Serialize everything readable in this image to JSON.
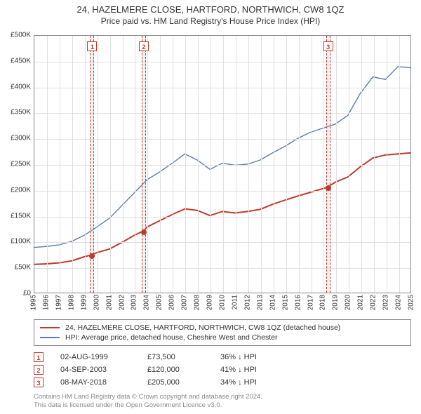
{
  "title_line1": "24, HAZELMERE CLOSE, HARTFORD, NORTHWICH, CW8 1QZ",
  "title_line2": "Price paid vs. HM Land Registry's House Price Index (HPI)",
  "chart": {
    "type": "line",
    "x_years_start": 1995,
    "x_years_end": 2025,
    "ylim": [
      0,
      500000
    ],
    "ytick_step": 50000,
    "ytick_labels": [
      "£0",
      "£50K",
      "£100K",
      "£150K",
      "£200K",
      "£250K",
      "£300K",
      "£350K",
      "£400K",
      "£450K",
      "£500K"
    ],
    "grid_color": "#e0e0e0",
    "border_color": "#888888",
    "background_color": "#ffffff",
    "series": [
      {
        "name": "price_paid",
        "color": "#c0392b",
        "width": 2,
        "points": [
          [
            1995,
            55000
          ],
          [
            1996,
            56000
          ],
          [
            1997,
            58000
          ],
          [
            1998,
            62000
          ],
          [
            1999,
            70000
          ],
          [
            1999.6,
            73500
          ],
          [
            2000,
            78000
          ],
          [
            2001,
            85000
          ],
          [
            2002,
            98000
          ],
          [
            2003,
            112000
          ],
          [
            2003.7,
            120000
          ],
          [
            2004,
            128000
          ],
          [
            2005,
            140000
          ],
          [
            2006,
            152000
          ],
          [
            2007,
            163000
          ],
          [
            2008,
            160000
          ],
          [
            2009,
            150000
          ],
          [
            2010,
            158000
          ],
          [
            2011,
            155000
          ],
          [
            2012,
            158000
          ],
          [
            2013,
            162000
          ],
          [
            2014,
            172000
          ],
          [
            2015,
            180000
          ],
          [
            2016,
            188000
          ],
          [
            2017,
            195000
          ],
          [
            2018.35,
            205000
          ],
          [
            2019,
            215000
          ],
          [
            2020,
            225000
          ],
          [
            2021,
            245000
          ],
          [
            2022,
            262000
          ],
          [
            2023,
            268000
          ],
          [
            2024,
            270000
          ],
          [
            2025,
            272000
          ]
        ]
      },
      {
        "name": "hpi",
        "color": "#5b7ca8",
        "width": 1.4,
        "points": [
          [
            1995,
            88000
          ],
          [
            1996,
            90000
          ],
          [
            1997,
            93000
          ],
          [
            1998,
            100000
          ],
          [
            1999,
            112000
          ],
          [
            2000,
            128000
          ],
          [
            2001,
            145000
          ],
          [
            2002,
            170000
          ],
          [
            2003,
            195000
          ],
          [
            2004,
            220000
          ],
          [
            2005,
            235000
          ],
          [
            2006,
            252000
          ],
          [
            2007,
            270000
          ],
          [
            2008,
            258000
          ],
          [
            2009,
            240000
          ],
          [
            2010,
            252000
          ],
          [
            2011,
            248000
          ],
          [
            2012,
            250000
          ],
          [
            2013,
            258000
          ],
          [
            2014,
            272000
          ],
          [
            2015,
            285000
          ],
          [
            2016,
            300000
          ],
          [
            2017,
            312000
          ],
          [
            2018,
            320000
          ],
          [
            2019,
            328000
          ],
          [
            2020,
            345000
          ],
          [
            2021,
            388000
          ],
          [
            2022,
            420000
          ],
          [
            2023,
            415000
          ],
          [
            2024,
            440000
          ],
          [
            2025,
            438000
          ]
        ]
      }
    ],
    "sale_markers": [
      {
        "id": "1",
        "year": 1999.6,
        "price": 73500
      },
      {
        "id": "2",
        "year": 2003.7,
        "price": 120000
      },
      {
        "id": "3",
        "year": 2018.35,
        "price": 205000
      }
    ],
    "marker_band_color": "rgba(200,200,200,0.25)",
    "marker_border_color": "#c0392b"
  },
  "legend": {
    "items": [
      {
        "color": "#c0392b",
        "label": "24, HAZELMERE CLOSE, HARTFORD, NORTHWICH, CW8 1QZ (detached house)"
      },
      {
        "color": "#5b7ca8",
        "label": "HPI: Average price, detached house, Cheshire West and Chester"
      }
    ]
  },
  "events": [
    {
      "id": "1",
      "date": "02-AUG-1999",
      "price": "£73,500",
      "delta": "36% ↓ HPI"
    },
    {
      "id": "2",
      "date": "04-SEP-2003",
      "price": "£120,000",
      "delta": "41% ↓ HPI"
    },
    {
      "id": "3",
      "date": "08-MAY-2018",
      "price": "£205,000",
      "delta": "34% ↓ HPI"
    }
  ],
  "footer_line1": "Contains HM Land Registry data © Crown copyright and database right 2024.",
  "footer_line2": "This data is licensed under the Open Government Licence v3.0."
}
